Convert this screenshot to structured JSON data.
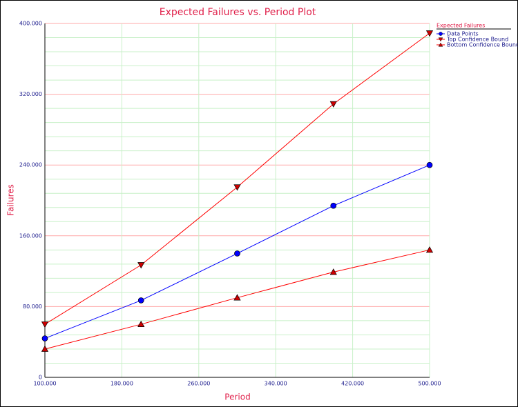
{
  "chart_data": {
    "type": "line",
    "title": "Expected Failures vs. Period Plot",
    "x_label": "Period",
    "y_label": "Failures",
    "legend_title": "Expected Failures",
    "legend_position": "top-right",
    "x": [
      100,
      200,
      300,
      400,
      500
    ],
    "series": [
      {
        "name": "Data Points",
        "color": "#0000ff",
        "marker": "circle",
        "marker_color": "#0000ff",
        "values": [
          44,
          87,
          140,
          194,
          240
        ]
      },
      {
        "name": "Top Confidence Bound",
        "color": "#ff0000",
        "marker": "triangle-down",
        "marker_color": "#cc0000",
        "values": [
          60,
          127,
          215,
          309,
          389
        ]
      },
      {
        "name": "Bottom Confidence Bound",
        "color": "#ff0000",
        "marker": "triangle-up",
        "marker_color": "#cc0000",
        "values": [
          32,
          60,
          90,
          119,
          144
        ]
      }
    ],
    "xlim": [
      100,
      500
    ],
    "xticks": [
      {
        "value": 100,
        "label": "100.000"
      },
      {
        "value": 180,
        "label": "180.000"
      },
      {
        "value": 260,
        "label": "260.000"
      },
      {
        "value": 340,
        "label": "340.000"
      },
      {
        "value": 420,
        "label": "420.000"
      },
      {
        "value": 500,
        "label": "500.000"
      }
    ],
    "ylim": [
      0,
      400
    ],
    "yticks": [
      0,
      {
        "value": 80,
        "label": "80.000"
      },
      {
        "value": 160,
        "label": "160.000"
      },
      {
        "value": 240,
        "label": "240.000"
      },
      {
        "value": 320,
        "label": "320.000"
      },
      {
        "value": 400,
        "label": "400.000"
      }
    ],
    "y_minor_grid": [
      16,
      32,
      48,
      64,
      96,
      112,
      128,
      144,
      176,
      192,
      208,
      224,
      256,
      272,
      288,
      304,
      336,
      352,
      368,
      384
    ],
    "grid": true,
    "major_grid_color": "#ffaaaa",
    "minor_grid_color": "#c8f0c8"
  }
}
